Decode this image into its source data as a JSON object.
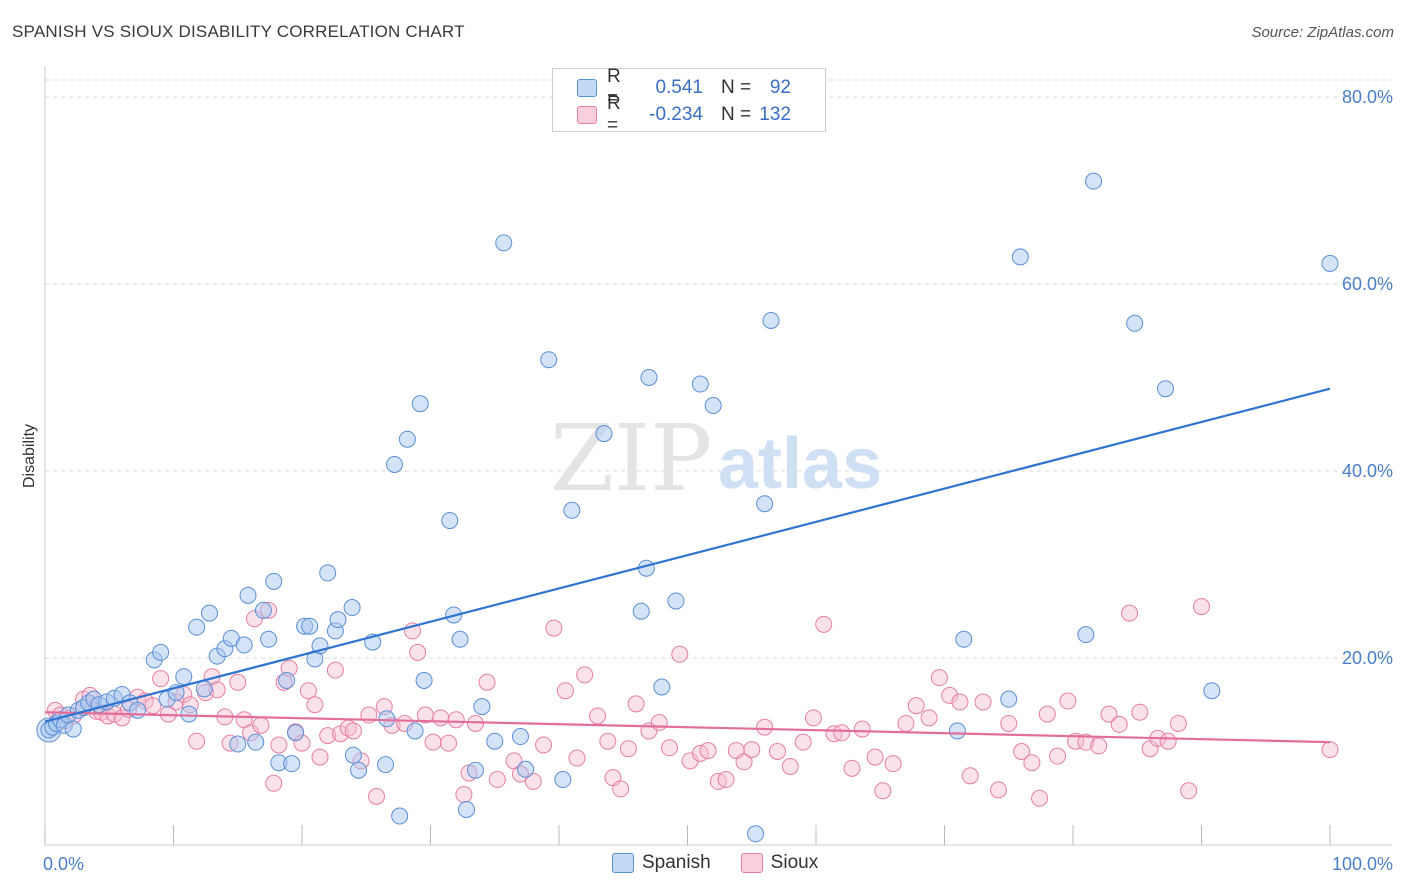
{
  "header": {
    "title": "SPANISH VS SIOUX DISABILITY CORRELATION CHART",
    "source": "Source: ZipAtlas.com"
  },
  "watermark": {
    "zip": "ZIP",
    "atlas": "atlas"
  },
  "legend": {
    "rows": [
      {
        "r_label": "R =",
        "r_value": "0.541",
        "n_label": "N =",
        "n_value": "92"
      },
      {
        "r_label": "R =",
        "r_value": "-0.234",
        "n_label": "N =",
        "n_value": "132"
      }
    ]
  },
  "bottom_legend": {
    "spanish": "Spanish",
    "sioux": "Sioux"
  },
  "colors": {
    "spanish_fill": "#a9c8f0",
    "spanish_stroke": "#5b8fd6",
    "spanish_line": "#2f74d0",
    "sioux_fill": "#f7bdd0",
    "sioux_stroke": "#e67fa3",
    "sioux_line": "#e26f9a",
    "grid": "#d9d9d9",
    "tick_text": "#4a7fc8"
  },
  "chart_data": {
    "type": "scatter",
    "ylabel": "Disability",
    "xlim": [
      0,
      100
    ],
    "ylim": [
      0,
      80
    ],
    "x_tick_labels": [
      {
        "value": 0,
        "label": "0.0%"
      },
      {
        "value": 100,
        "label": "100.0%"
      }
    ],
    "y_tick_labels": [
      {
        "value": 20,
        "label": "20.0%"
      },
      {
        "value": 40,
        "label": "40.0%"
      },
      {
        "value": 60,
        "label": "60.0%"
      },
      {
        "value": 80,
        "label": "80.0%"
      }
    ],
    "grid": true,
    "series": [
      {
        "name": "Spanish",
        "trend": {
          "x": [
            0,
            100
          ],
          "y": [
            13.2,
            48.8
          ]
        },
        "points": [
          [
            0.3,
            12.3
          ],
          [
            0.6,
            12.6
          ],
          [
            0.9,
            13.0
          ],
          [
            1.2,
            13.4
          ],
          [
            1.5,
            12.8
          ],
          [
            1.8,
            13.9
          ],
          [
            2.2,
            12.4
          ],
          [
            2.6,
            14.4
          ],
          [
            3.0,
            14.7
          ],
          [
            3.4,
            15.2
          ],
          [
            3.8,
            15.6
          ],
          [
            4.2,
            15.0
          ],
          [
            4.8,
            15.3
          ],
          [
            5.4,
            15.7
          ],
          [
            6.0,
            16.1
          ],
          [
            6.6,
            15.2
          ],
          [
            7.2,
            14.4
          ],
          [
            8.5,
            19.8
          ],
          [
            9.0,
            20.6
          ],
          [
            9.5,
            15.6
          ],
          [
            10.2,
            16.3
          ],
          [
            10.8,
            18.0
          ],
          [
            11.2,
            14.0
          ],
          [
            11.8,
            23.3
          ],
          [
            12.4,
            16.7
          ],
          [
            12.8,
            24.8
          ],
          [
            13.4,
            20.2
          ],
          [
            14.0,
            21.0
          ],
          [
            14.5,
            22.1
          ],
          [
            15.0,
            10.8
          ],
          [
            15.5,
            21.4
          ],
          [
            15.8,
            26.7
          ],
          [
            16.4,
            11.0
          ],
          [
            17.0,
            25.1
          ],
          [
            17.4,
            22.0
          ],
          [
            17.8,
            28.2
          ],
          [
            18.2,
            8.8
          ],
          [
            18.8,
            17.6
          ],
          [
            19.2,
            8.7
          ],
          [
            19.5,
            12.0
          ],
          [
            20.2,
            23.4
          ],
          [
            20.6,
            23.4
          ],
          [
            21.0,
            19.9
          ],
          [
            21.4,
            21.3
          ],
          [
            22.0,
            29.1
          ],
          [
            22.6,
            22.9
          ],
          [
            22.8,
            24.1
          ],
          [
            23.9,
            25.4
          ],
          [
            24.0,
            9.6
          ],
          [
            24.4,
            8.0
          ],
          [
            25.5,
            21.7
          ],
          [
            26.5,
            8.6
          ],
          [
            26.6,
            13.5
          ],
          [
            27.2,
            40.7
          ],
          [
            27.6,
            3.1
          ],
          [
            28.2,
            43.4
          ],
          [
            28.8,
            12.2
          ],
          [
            29.2,
            47.2
          ],
          [
            29.5,
            17.6
          ],
          [
            31.5,
            34.7
          ],
          [
            31.8,
            24.6
          ],
          [
            32.3,
            22.0
          ],
          [
            32.8,
            3.8
          ],
          [
            33.5,
            8.0
          ],
          [
            34.0,
            14.8
          ],
          [
            35.0,
            11.1
          ],
          [
            35.7,
            64.4
          ],
          [
            37.0,
            11.6
          ],
          [
            37.4,
            8.1
          ],
          [
            39.2,
            51.9
          ],
          [
            40.3,
            7.0
          ],
          [
            41.0,
            35.8
          ],
          [
            43.5,
            44.0
          ],
          [
            46.4,
            25.0
          ],
          [
            46.8,
            29.6
          ],
          [
            47.0,
            50.0
          ],
          [
            48.0,
            16.9
          ],
          [
            49.1,
            26.1
          ],
          [
            51.0,
            49.3
          ],
          [
            52.0,
            47.0
          ],
          [
            55.3,
            1.2
          ],
          [
            56.0,
            36.5
          ],
          [
            56.5,
            56.1
          ],
          [
            71.0,
            12.2
          ],
          [
            71.5,
            22.0
          ],
          [
            75.0,
            15.6
          ],
          [
            75.9,
            62.9
          ],
          [
            81.0,
            22.5
          ],
          [
            81.6,
            71.0
          ],
          [
            84.8,
            55.8
          ],
          [
            87.2,
            48.8
          ],
          [
            90.8,
            16.5
          ],
          [
            100.0,
            62.2
          ]
        ],
        "spanish_big_point_note": ""
      },
      {
        "name": "Sioux",
        "trend": {
          "x": [
            0,
            100
          ],
          "y": [
            14.2,
            11.0
          ]
        },
        "points": [
          [
            0.8,
            14.4
          ],
          [
            1.2,
            13.9
          ],
          [
            1.6,
            13.3
          ],
          [
            2.2,
            13.8
          ],
          [
            3.0,
            15.6
          ],
          [
            3.5,
            16.0
          ],
          [
            4.0,
            14.3
          ],
          [
            4.4,
            14.2
          ],
          [
            4.9,
            13.8
          ],
          [
            5.4,
            14.0
          ],
          [
            6.0,
            13.6
          ],
          [
            6.5,
            14.5
          ],
          [
            7.2,
            15.8
          ],
          [
            7.8,
            15.4
          ],
          [
            8.4,
            14.9
          ],
          [
            9.0,
            17.8
          ],
          [
            9.6,
            14.0
          ],
          [
            10.2,
            15.3
          ],
          [
            10.8,
            16.1
          ],
          [
            11.3,
            15.0
          ],
          [
            11.8,
            11.1
          ],
          [
            12.5,
            16.3
          ],
          [
            13.0,
            18.0
          ],
          [
            13.4,
            16.6
          ],
          [
            14.0,
            13.7
          ],
          [
            14.4,
            10.9
          ],
          [
            15.0,
            17.4
          ],
          [
            15.5,
            13.4
          ],
          [
            16.0,
            12.0
          ],
          [
            16.3,
            24.2
          ],
          [
            16.8,
            12.8
          ],
          [
            17.4,
            25.1
          ],
          [
            17.8,
            6.6
          ],
          [
            18.2,
            10.7
          ],
          [
            18.6,
            17.4
          ],
          [
            19.0,
            18.9
          ],
          [
            19.5,
            12.1
          ],
          [
            20.0,
            10.9
          ],
          [
            20.5,
            16.5
          ],
          [
            21.0,
            15.0
          ],
          [
            21.4,
            9.4
          ],
          [
            22.0,
            11.7
          ],
          [
            22.6,
            18.7
          ],
          [
            23.0,
            11.9
          ],
          [
            23.6,
            12.5
          ],
          [
            24.0,
            12.2
          ],
          [
            24.6,
            9.0
          ],
          [
            25.2,
            13.9
          ],
          [
            25.8,
            5.2
          ],
          [
            26.4,
            14.8
          ],
          [
            27.0,
            12.8
          ],
          [
            28.0,
            13.0
          ],
          [
            28.6,
            22.9
          ],
          [
            29.0,
            20.6
          ],
          [
            29.6,
            13.9
          ],
          [
            30.2,
            11.0
          ],
          [
            30.8,
            13.6
          ],
          [
            31.4,
            10.9
          ],
          [
            32.0,
            13.4
          ],
          [
            32.6,
            5.4
          ],
          [
            33.0,
            7.7
          ],
          [
            33.5,
            13.0
          ],
          [
            34.4,
            17.4
          ],
          [
            35.2,
            7.0
          ],
          [
            36.5,
            9.0
          ],
          [
            37.0,
            7.6
          ],
          [
            38.0,
            6.8
          ],
          [
            38.8,
            10.7
          ],
          [
            39.6,
            23.2
          ],
          [
            40.5,
            16.5
          ],
          [
            41.4,
            9.3
          ],
          [
            42.0,
            18.2
          ],
          [
            43.0,
            13.8
          ],
          [
            43.8,
            11.1
          ],
          [
            44.2,
            7.2
          ],
          [
            44.8,
            6.0
          ],
          [
            45.4,
            10.3
          ],
          [
            46.0,
            15.1
          ],
          [
            47.0,
            12.2
          ],
          [
            47.8,
            13.1
          ],
          [
            48.6,
            10.4
          ],
          [
            49.4,
            20.4
          ],
          [
            50.2,
            9.0
          ],
          [
            51.0,
            9.8
          ],
          [
            51.6,
            10.1
          ],
          [
            52.4,
            6.8
          ],
          [
            53.0,
            7.0
          ],
          [
            53.8,
            10.1
          ],
          [
            54.4,
            8.9
          ],
          [
            55.0,
            10.2
          ],
          [
            56.0,
            12.6
          ],
          [
            57.0,
            10.0
          ],
          [
            58.0,
            8.4
          ],
          [
            59.0,
            11.0
          ],
          [
            59.8,
            13.6
          ],
          [
            60.6,
            23.6
          ],
          [
            61.4,
            11.9
          ],
          [
            62.0,
            12.0
          ],
          [
            62.8,
            8.2
          ],
          [
            63.6,
            12.4
          ],
          [
            64.6,
            9.4
          ],
          [
            65.2,
            5.8
          ],
          [
            66.0,
            8.7
          ],
          [
            67.0,
            13.0
          ],
          [
            67.8,
            14.9
          ],
          [
            68.8,
            13.6
          ],
          [
            69.6,
            17.9
          ],
          [
            70.4,
            16.0
          ],
          [
            71.2,
            15.3
          ],
          [
            72.0,
            7.4
          ],
          [
            73.0,
            15.3
          ],
          [
            74.2,
            5.9
          ],
          [
            75.0,
            13.0
          ],
          [
            76.0,
            10.0
          ],
          [
            76.8,
            8.8
          ],
          [
            77.4,
            5.0
          ],
          [
            78.0,
            14.0
          ],
          [
            78.8,
            9.5
          ],
          [
            79.6,
            15.4
          ],
          [
            80.2,
            11.1
          ],
          [
            81.0,
            11.0
          ],
          [
            82.0,
            10.6
          ],
          [
            82.8,
            14.0
          ],
          [
            83.6,
            12.9
          ],
          [
            84.4,
            24.8
          ],
          [
            85.2,
            14.2
          ],
          [
            86.0,
            10.3
          ],
          [
            86.6,
            11.4
          ],
          [
            87.4,
            11.1
          ],
          [
            88.2,
            13.0
          ],
          [
            89.0,
            5.8
          ],
          [
            90.0,
            25.5
          ],
          [
            100.0,
            10.2
          ]
        ]
      }
    ]
  }
}
